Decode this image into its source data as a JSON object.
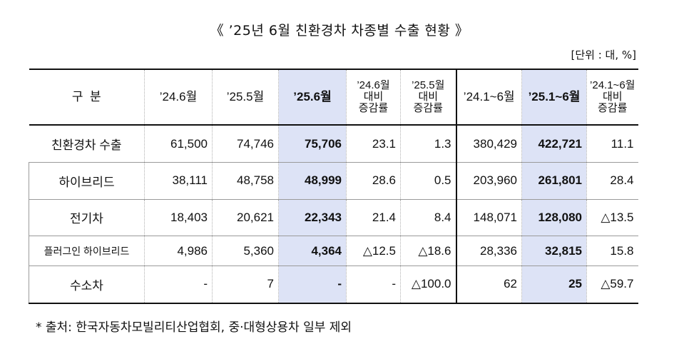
{
  "title": "《 ’25년 6월 친환경차 차종별 수출 현황 》",
  "unit": "[단위 : 대, %]",
  "table": {
    "headers": {
      "category": "구  분",
      "c1": "’24.6월",
      "c2": "’25.5월",
      "c3": "’25.6월",
      "c4": "’24.6월\n대비\n증감률",
      "c5": "’25.5월\n대비\n증감률",
      "c6": "’24.1~6월",
      "c7": "’25.1~6월",
      "c8": "’24.1~6월\n대비\n증감률"
    },
    "rows": [
      {
        "label": "친환경차 수출",
        "c1": "61,500",
        "c2": "74,746",
        "c3": "75,706",
        "c4": "23.1",
        "c5": "1.3",
        "c6": "380,429",
        "c7": "422,721",
        "c8": "11.1"
      },
      {
        "label": "하이브리드",
        "c1": "38,111",
        "c2": "48,758",
        "c3": "48,999",
        "c4": "28.6",
        "c5": "0.5",
        "c6": "203,960",
        "c7": "261,801",
        "c8": "28.4"
      },
      {
        "label": "전기차",
        "c1": "18,403",
        "c2": "20,621",
        "c3": "22,343",
        "c4": "21.4",
        "c5": "8.4",
        "c6": "148,071",
        "c7": "128,080",
        "c8": "△13.5"
      },
      {
        "label": "플러그인 하이브리드",
        "c1": "4,986",
        "c2": "5,360",
        "c3": "4,364",
        "c4": "△12.5",
        "c5": "△18.6",
        "c6": "28,336",
        "c7": "32,815",
        "c8": "15.8"
      },
      {
        "label": "수소차",
        "c1": "-",
        "c2": "7",
        "c3": "-",
        "c4": "-",
        "c5": "△100.0",
        "c6": "62",
        "c7": "25",
        "c8": "△59.7"
      }
    ]
  },
  "footnote": "* 출처: 한국자동차모빌리티산업협회, 중·대형상용차 일부 제외",
  "colors": {
    "highlight": "#dde3f6"
  }
}
